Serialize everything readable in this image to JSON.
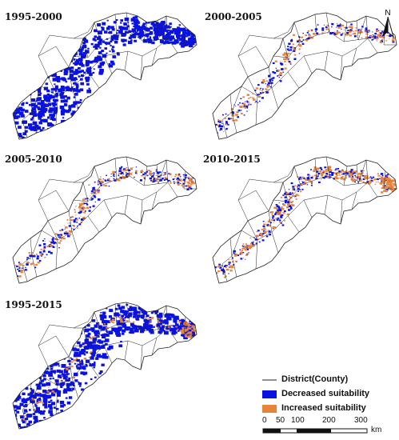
{
  "panels": [
    {
      "id": "p1",
      "label": "1995-2000",
      "decreased": 0.9,
      "increased": 0.0
    },
    {
      "id": "p2",
      "label": "2000-2005",
      "decreased": 0.25,
      "increased": 0.35
    },
    {
      "id": "p3",
      "label": "2005-2010",
      "decreased": 0.3,
      "increased": 0.35
    },
    {
      "id": "p4",
      "label": "2010-2015",
      "decreased": 0.3,
      "increased": 0.6
    },
    {
      "id": "p5",
      "label": "1995-2015",
      "decreased": 0.85,
      "increased": 0.2
    }
  ],
  "north": {
    "label": "N"
  },
  "legend": {
    "district_label": "District(County)",
    "decreased_label": "Decreased suitability",
    "increased_label": "Increased suitability"
  },
  "scale": {
    "ticks": [
      "0",
      "50",
      "100",
      "200",
      "300"
    ],
    "unit": "km"
  },
  "colors": {
    "decreased": "#0a12e0",
    "increased": "#e8833a",
    "boundary": "#222222"
  }
}
